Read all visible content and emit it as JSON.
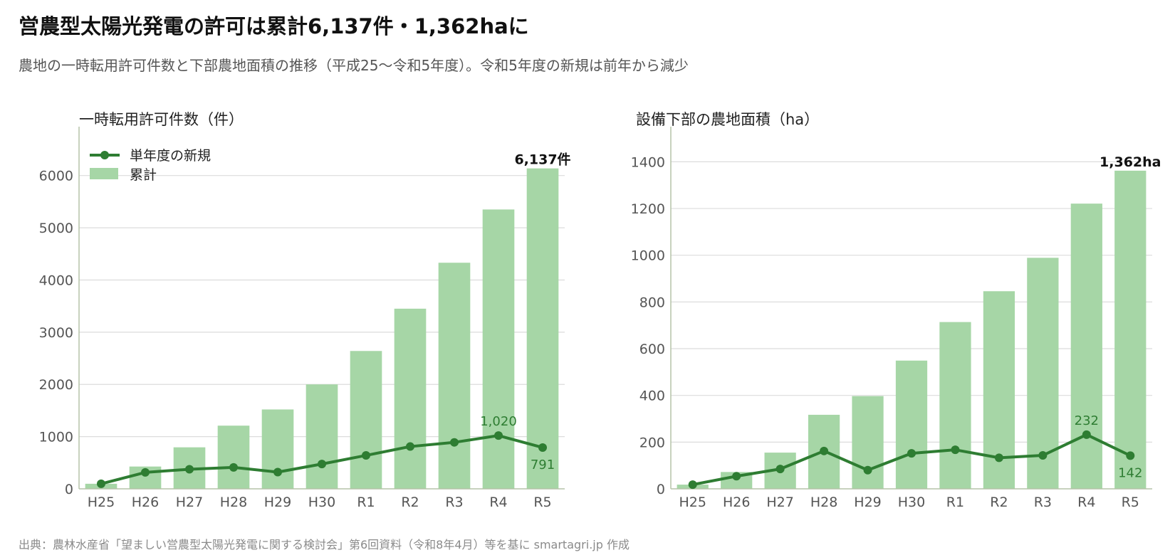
{
  "header": {
    "title": "営農型太陽光発電の許可は累計6,137件・1,362haに",
    "subtitle": "農地の一時転用許可件数と下部農地面積の推移（平成25〜令和5年度）。令和5年度の新規は前年から減少"
  },
  "source": "出典：農林水産省「望ましい営農型太陽光発電に関する検討会」第6回資料（令和8年4月）等を基に smartagri.jp 作成",
  "colors": {
    "bar": "#a6d6a6",
    "line": "#2e7d32",
    "grid": "#dcdcdc",
    "axis": "#b5c4a8"
  },
  "chart_data": [
    {
      "type": "bar",
      "title": "一時転用許可件数（件）",
      "categories": [
        "H25",
        "H26",
        "H27",
        "H28",
        "H29",
        "H30",
        "R1",
        "R2",
        "R3",
        "R4",
        "R5"
      ],
      "series": [
        {
          "name": "累計",
          "kind": "bar",
          "values": [
            97,
            427,
            795,
            1210,
            1520,
            2000,
            2640,
            3450,
            4330,
            5350,
            6137
          ]
        },
        {
          "name": "単年度の新規",
          "kind": "line",
          "values": [
            97,
            315,
            375,
            410,
            320,
            475,
            640,
            810,
            890,
            1020,
            791
          ]
        }
      ],
      "ylim": [
        0,
        6800
      ],
      "yticks": [
        0,
        1000,
        2000,
        3000,
        4000,
        5000,
        6000
      ],
      "grid": true,
      "legend": "top-left",
      "annotations": [
        {
          "text": "6,137件",
          "target": "bar",
          "index": 10,
          "bold": true
        },
        {
          "text": "1,020",
          "target": "line",
          "index": 9,
          "position": "above"
        },
        {
          "text": "791",
          "target": "line",
          "index": 10,
          "position": "below"
        }
      ]
    },
    {
      "type": "bar",
      "title": "設備下部の農地面積（ha）",
      "categories": [
        "H25",
        "H26",
        "H27",
        "H28",
        "H29",
        "H30",
        "R1",
        "R2",
        "R3",
        "R4",
        "R5"
      ],
      "series": [
        {
          "name": "累計",
          "kind": "bar",
          "values": [
            18,
            72,
            155,
            317,
            397,
            549,
            714,
            846,
            989,
            1221,
            1362
          ]
        },
        {
          "name": "単年度の新規",
          "kind": "line",
          "values": [
            18,
            54,
            85,
            162,
            80,
            152,
            167,
            133,
            143,
            232,
            142
          ]
        }
      ],
      "ylim": [
        0,
        1520
      ],
      "yticks": [
        0,
        200,
        400,
        600,
        800,
        1000,
        1200,
        1400
      ],
      "grid": true,
      "annotations": [
        {
          "text": "1,362ha",
          "target": "bar",
          "index": 10,
          "bold": true
        },
        {
          "text": "232",
          "target": "line",
          "index": 9,
          "position": "above"
        },
        {
          "text": "142",
          "target": "line",
          "index": 10,
          "position": "below"
        }
      ]
    }
  ]
}
